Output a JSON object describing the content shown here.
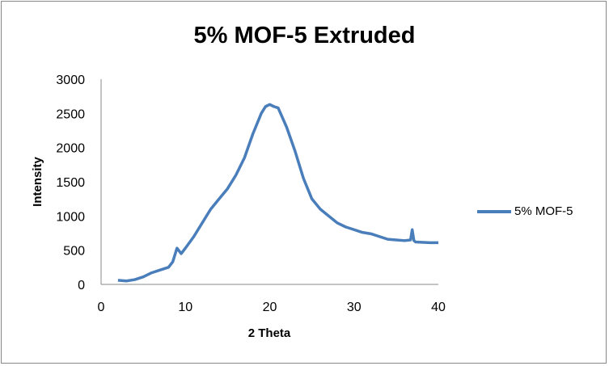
{
  "chart_data": {
    "type": "line",
    "title": "5% MOF-5 Extruded",
    "xlabel": "2 Theta",
    "ylabel": "Intensity",
    "xlim": [
      0,
      40
    ],
    "ylim": [
      0,
      3000
    ],
    "xticks": [
      "0",
      "10",
      "20",
      "30",
      "40"
    ],
    "yticks": [
      "0",
      "500",
      "1000",
      "1500",
      "2000",
      "2500",
      "3000"
    ],
    "grid": false,
    "legend_position": "right",
    "series": [
      {
        "name": "5% MOF-5",
        "color": "#4a7ebb",
        "x": [
          2,
          3,
          4,
          5,
          6,
          7,
          8,
          8.5,
          9,
          9.5,
          10,
          11,
          12,
          13,
          14,
          15,
          16,
          17,
          18,
          19,
          19.5,
          20,
          20.5,
          21,
          22,
          23,
          24,
          25,
          26,
          27,
          28,
          29,
          30,
          31,
          32,
          33,
          34,
          35,
          36,
          36.7,
          36.9,
          37.1,
          37.3,
          38,
          39,
          40
        ],
        "y": [
          60,
          50,
          70,
          110,
          170,
          210,
          250,
          330,
          530,
          450,
          530,
          700,
          900,
          1100,
          1250,
          1400,
          1600,
          1850,
          2200,
          2500,
          2600,
          2630,
          2600,
          2580,
          2300,
          1950,
          1550,
          1250,
          1100,
          1000,
          900,
          840,
          800,
          760,
          740,
          700,
          660,
          650,
          640,
          650,
          800,
          640,
          620,
          615,
          610,
          610
        ]
      }
    ]
  }
}
